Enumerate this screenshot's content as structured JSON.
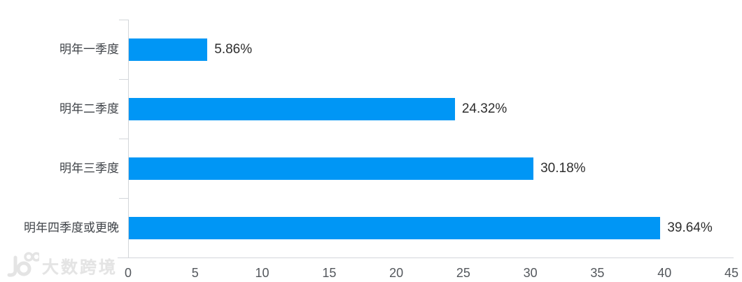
{
  "chart_data": {
    "type": "bar",
    "orientation": "horizontal",
    "title": "",
    "xlabel": "",
    "ylabel": "",
    "categories": [
      "明年一季度",
      "明年二季度",
      "明年三季度",
      "明年四季度或更晚"
    ],
    "values": [
      5.86,
      24.32,
      30.18,
      39.64
    ],
    "value_labels": [
      "5.86%",
      "24.32%",
      "30.18%",
      "39.64%"
    ],
    "xlim": [
      0,
      45
    ],
    "xticks": [
      0,
      5,
      10,
      15,
      20,
      25,
      30,
      35,
      40,
      45
    ],
    "grid": false,
    "legend": false,
    "bar_color": "#0096F5"
  },
  "colors": {
    "bar": "#0096F5",
    "axis_line": "#D3D6DA",
    "tick_text": "#53575C",
    "category_text": "#3F4348",
    "value_text": "#2E2E2E",
    "watermark": "#E4E4E4",
    "background": "#FFFFFF"
  },
  "watermark": {
    "text": "大数跨境",
    "logo": "10100-logo"
  }
}
